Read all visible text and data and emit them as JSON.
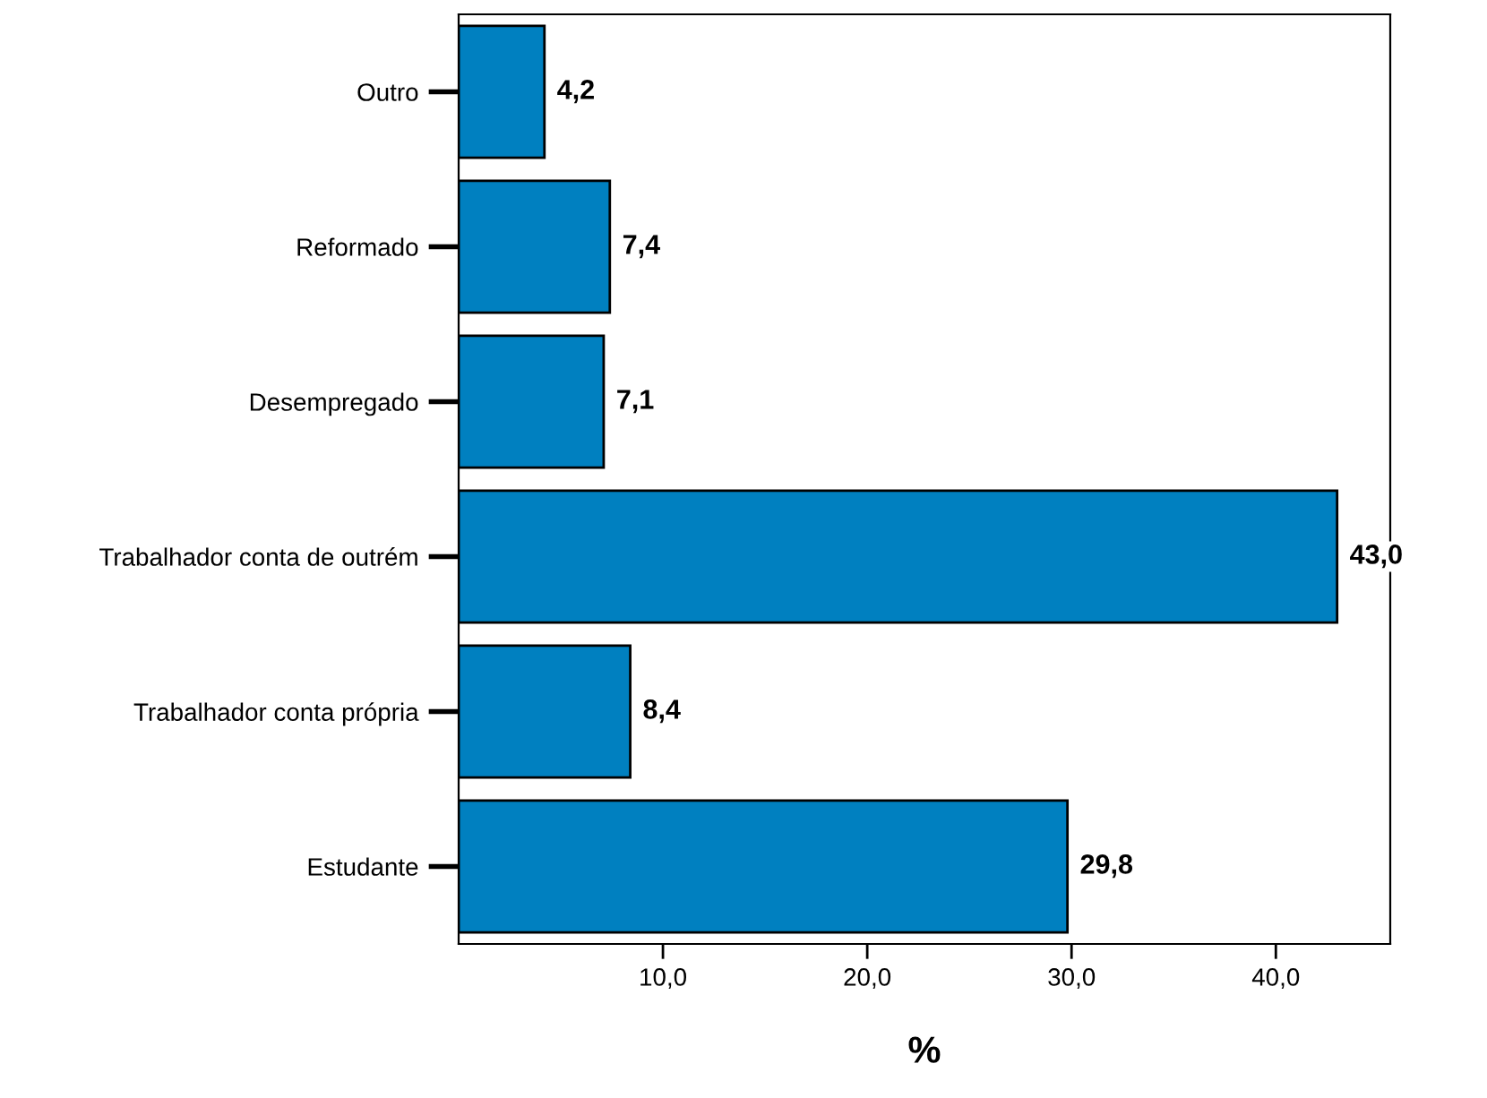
{
  "chart_data": {
    "type": "bar",
    "orientation": "horizontal",
    "xlabel": "%",
    "categories": [
      "Outro",
      "Reformado",
      "Desempregado",
      "Trabalhador conta de outrém",
      "Trabalhador conta própria",
      "Estudante"
    ],
    "values": [
      4.2,
      7.4,
      7.1,
      43.0,
      8.4,
      29.8
    ],
    "value_labels": [
      "4,2",
      "7,4",
      "7,1",
      "43,0",
      "8,4",
      "29,8"
    ],
    "color": "#0080c0",
    "xlim": [
      0,
      45.6
    ],
    "xticks": [
      {
        "value": 10,
        "label": "10,0"
      },
      {
        "value": 20,
        "label": "20,0"
      },
      {
        "value": 30,
        "label": "30,0"
      },
      {
        "value": 40,
        "label": "40,0"
      }
    ],
    "grid": false
  }
}
